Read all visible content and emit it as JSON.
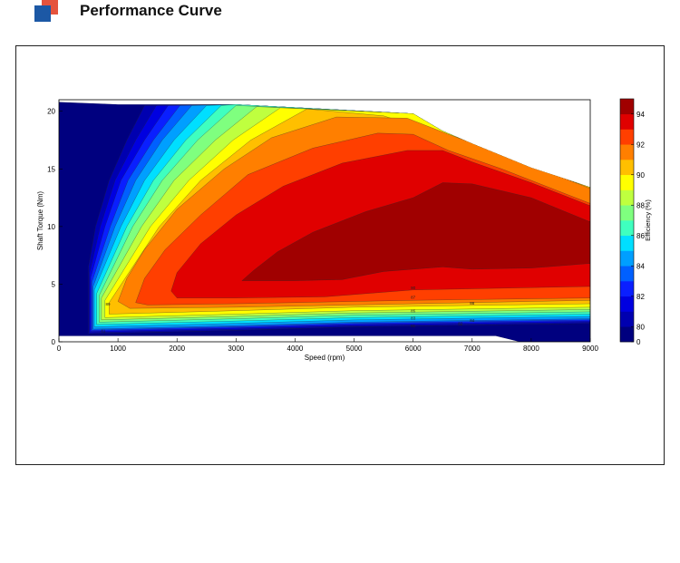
{
  "header": {
    "title": "Performance Curve"
  },
  "chart_data": {
    "type": "contour",
    "xlabel": "Speed  (rpm)",
    "ylabel": "Shaft Torque  (Nm)",
    "colorbar_label": "Efficiency (%)",
    "xlim": [
      0,
      9000
    ],
    "ylim": [
      0,
      21
    ],
    "x_ticks": [
      "0",
      "1000",
      "2000",
      "3000",
      "4000",
      "5000",
      "6000",
      "7000",
      "8000",
      "9000"
    ],
    "y_ticks": [
      "0",
      "5",
      "10",
      "15",
      "20"
    ],
    "colorbar_ticks": [
      "0",
      "80",
      "82",
      "84",
      "86",
      "88",
      "90",
      "92",
      "94"
    ],
    "levels": [
      0,
      80,
      81,
      82,
      83,
      84,
      85,
      86,
      87,
      88,
      89,
      90,
      91,
      92,
      93,
      94
    ],
    "colors": [
      "#00007f",
      "#0000b0",
      "#0000e0",
      "#0a1fff",
      "#0060ff",
      "#009fff",
      "#00dfff",
      "#3fffbf",
      "#7fff7f",
      "#bfff3f",
      "#ffff00",
      "#ffbf00",
      "#ff7f00",
      "#ff3f00",
      "#e00000",
      "#a00000"
    ],
    "envelope": [
      [
        0,
        20.8
      ],
      [
        1000,
        20.6
      ],
      [
        3000,
        20.6
      ],
      [
        6000,
        19.8
      ],
      [
        6500,
        18.3
      ],
      [
        7000,
        17.2
      ],
      [
        8000,
        15.1
      ],
      [
        8600,
        14.1
      ],
      [
        9000,
        13.4
      ],
      [
        9000,
        0
      ],
      [
        7800,
        0
      ],
      [
        7400,
        0.5
      ],
      [
        0,
        0.5
      ]
    ],
    "zones": [
      {
        "level": 0,
        "points": [
          [
            0,
            20.8
          ],
          [
            1000,
            20.6
          ],
          [
            3000,
            20.6
          ],
          [
            6000,
            19.8
          ],
          [
            6500,
            18.3
          ],
          [
            7000,
            17.2
          ],
          [
            8000,
            15.1
          ],
          [
            8600,
            14.1
          ],
          [
            9000,
            13.4
          ],
          [
            9000,
            0
          ],
          [
            7800,
            0
          ],
          [
            7400,
            0.5
          ],
          [
            0,
            0.5
          ]
        ]
      },
      {
        "level": 80,
        "points": [
          [
            500,
            6.5
          ],
          [
            620,
            10
          ],
          [
            850,
            14
          ],
          [
            1150,
            17.5
          ],
          [
            1450,
            20.5
          ],
          [
            3000,
            20.6
          ],
          [
            6000,
            19.8
          ],
          [
            6500,
            18.3
          ],
          [
            7000,
            17.2
          ],
          [
            8000,
            15.1
          ],
          [
            8600,
            14.1
          ],
          [
            9000,
            13.4
          ],
          [
            9000,
            1.6
          ],
          [
            5000,
            1.3
          ],
          [
            3000,
            1.0
          ],
          [
            500,
            0.7
          ]
        ]
      },
      {
        "level": 81,
        "points": [
          [
            520,
            6.0
          ],
          [
            700,
            10
          ],
          [
            950,
            14
          ],
          [
            1300,
            17.5
          ],
          [
            1650,
            20.5
          ],
          [
            3000,
            20.6
          ],
          [
            6000,
            19.8
          ],
          [
            6500,
            18.3
          ],
          [
            7000,
            17.2
          ],
          [
            8000,
            15.1
          ],
          [
            8600,
            14.1
          ],
          [
            9000,
            13.4
          ],
          [
            9000,
            1.7
          ],
          [
            5000,
            1.4
          ],
          [
            3000,
            1.1
          ],
          [
            520,
            0.8
          ]
        ]
      },
      {
        "level": 82,
        "points": [
          [
            540,
            5.6
          ],
          [
            780,
            10
          ],
          [
            1050,
            14
          ],
          [
            1450,
            17.5
          ],
          [
            1850,
            20.5
          ],
          [
            3000,
            20.6
          ],
          [
            6000,
            19.8
          ],
          [
            6500,
            18.3
          ],
          [
            7000,
            17.2
          ],
          [
            8000,
            15.1
          ],
          [
            8600,
            14.1
          ],
          [
            9000,
            13.4
          ],
          [
            9000,
            1.8
          ],
          [
            5000,
            1.5
          ],
          [
            3000,
            1.2
          ],
          [
            540,
            0.9
          ]
        ]
      },
      {
        "level": 83,
        "points": [
          [
            560,
            5.2
          ],
          [
            870,
            10
          ],
          [
            1170,
            14
          ],
          [
            1600,
            17.5
          ],
          [
            2050,
            20.5
          ],
          [
            3000,
            20.6
          ],
          [
            6000,
            19.8
          ],
          [
            6500,
            18.3
          ],
          [
            7000,
            17.2
          ],
          [
            8000,
            15.1
          ],
          [
            8600,
            14.1
          ],
          [
            9000,
            13.4
          ],
          [
            9000,
            1.9
          ],
          [
            5000,
            1.6
          ],
          [
            3000,
            1.3
          ],
          [
            560,
            1.0
          ]
        ]
      },
      {
        "level": 84,
        "points": [
          [
            580,
            4.8
          ],
          [
            950,
            10
          ],
          [
            1300,
            14
          ],
          [
            1750,
            17.5
          ],
          [
            2250,
            20.5
          ],
          [
            3000,
            20.6
          ],
          [
            6000,
            19.8
          ],
          [
            6500,
            18.3
          ],
          [
            7000,
            17.2
          ],
          [
            8000,
            15.1
          ],
          [
            8600,
            14.1
          ],
          [
            9000,
            13.4
          ],
          [
            9000,
            2.0
          ],
          [
            5000,
            1.7
          ],
          [
            3000,
            1.4
          ],
          [
            580,
            1.1
          ]
        ]
      },
      {
        "level": 85,
        "points": [
          [
            600,
            4.5
          ],
          [
            1050,
            10
          ],
          [
            1450,
            14
          ],
          [
            1950,
            17.5
          ],
          [
            2500,
            20.5
          ],
          [
            3000,
            20.6
          ],
          [
            6000,
            19.8
          ],
          [
            6500,
            18.3
          ],
          [
            7000,
            17.2
          ],
          [
            8000,
            15.1
          ],
          [
            8600,
            14.1
          ],
          [
            9000,
            13.4
          ],
          [
            9000,
            2.2
          ],
          [
            5000,
            1.9
          ],
          [
            3000,
            1.6
          ],
          [
            600,
            1.3
          ]
        ]
      },
      {
        "level": 86,
        "points": [
          [
            640,
            4.2
          ],
          [
            1150,
            10
          ],
          [
            1600,
            14
          ],
          [
            2150,
            17.5
          ],
          [
            2750,
            20.5
          ],
          [
            3000,
            20.6
          ],
          [
            6000,
            19.8
          ],
          [
            6500,
            18.3
          ],
          [
            7000,
            17.2
          ],
          [
            8000,
            15.1
          ],
          [
            8600,
            14.1
          ],
          [
            9000,
            13.4
          ],
          [
            9000,
            2.4
          ],
          [
            5000,
            2.1
          ],
          [
            3000,
            1.8
          ],
          [
            640,
            1.5
          ]
        ]
      },
      {
        "level": 87,
        "points": [
          [
            680,
            4.0
          ],
          [
            1250,
            10
          ],
          [
            1750,
            14
          ],
          [
            2350,
            17.5
          ],
          [
            3000,
            20.5
          ],
          [
            6000,
            19.8
          ],
          [
            6500,
            18.3
          ],
          [
            7000,
            17.2
          ],
          [
            8000,
            15.1
          ],
          [
            8600,
            14.1
          ],
          [
            9000,
            13.4
          ],
          [
            9000,
            2.6
          ],
          [
            5000,
            2.3
          ],
          [
            3000,
            2.0
          ],
          [
            680,
            1.7
          ]
        ]
      },
      {
        "level": 88,
        "points": [
          [
            720,
            3.8
          ],
          [
            1400,
            10
          ],
          [
            1950,
            14
          ],
          [
            2650,
            17.5
          ],
          [
            3350,
            20.4
          ],
          [
            6000,
            19.8
          ],
          [
            6500,
            18.3
          ],
          [
            7000,
            17.2
          ],
          [
            8000,
            15.1
          ],
          [
            8600,
            14.1
          ],
          [
            9000,
            13.4
          ],
          [
            9000,
            2.8
          ],
          [
            5000,
            2.5
          ],
          [
            3000,
            2.2
          ],
          [
            720,
            1.9
          ]
        ]
      },
      {
        "level": 89,
        "points": [
          [
            780,
            3.6
          ],
          [
            1550,
            10
          ],
          [
            2200,
            14
          ],
          [
            2950,
            17.5
          ],
          [
            3750,
            20.3
          ],
          [
            6000,
            19.8
          ],
          [
            6500,
            18.3
          ],
          [
            7000,
            17.2
          ],
          [
            8000,
            15.1
          ],
          [
            8600,
            14.1
          ],
          [
            9000,
            13.4
          ],
          [
            9000,
            3.0
          ],
          [
            5000,
            2.7
          ],
          [
            3000,
            2.4
          ],
          [
            780,
            2.1
          ]
        ]
      },
      {
        "level": 90,
        "points": [
          [
            850,
            3.4
          ],
          [
            1700,
            10
          ],
          [
            2400,
            14
          ],
          [
            3250,
            17.5
          ],
          [
            4200,
            20.2
          ],
          [
            5500,
            19.6
          ],
          [
            6300,
            18.3
          ],
          [
            7000,
            17.2
          ],
          [
            8000,
            15.1
          ],
          [
            8600,
            14.1
          ],
          [
            9000,
            13.4
          ],
          [
            9000,
            3.3
          ],
          [
            5000,
            3.0
          ],
          [
            3000,
            2.7
          ],
          [
            850,
            2.4
          ]
        ]
      },
      {
        "level": 91,
        "points": [
          [
            1000,
            3.5
          ],
          [
            1150,
            5.5
          ],
          [
            1450,
            8
          ],
          [
            2000,
            11.5
          ],
          [
            2800,
            15
          ],
          [
            3600,
            17.7
          ],
          [
            4700,
            19.5
          ],
          [
            5900,
            19.4
          ],
          [
            6600,
            18
          ],
          [
            7500,
            16.3
          ],
          [
            8500,
            14.3
          ],
          [
            9000,
            13.3
          ],
          [
            9000,
            3.6
          ],
          [
            6000,
            3.3
          ],
          [
            3000,
            3.0
          ],
          [
            1200,
            2.9
          ]
        ]
      },
      {
        "level": 92,
        "points": [
          [
            1300,
            3.4
          ],
          [
            1450,
            5.5
          ],
          [
            1800,
            8
          ],
          [
            2400,
            11
          ],
          [
            3200,
            14.5
          ],
          [
            4300,
            16.8
          ],
          [
            5400,
            18.1
          ],
          [
            6000,
            18
          ],
          [
            6600,
            16.6
          ],
          [
            7500,
            15
          ],
          [
            8500,
            13
          ],
          [
            9000,
            12
          ],
          [
            9000,
            3.8
          ],
          [
            6000,
            3.6
          ],
          [
            3000,
            3.3
          ],
          [
            1500,
            3.2
          ]
        ]
      },
      {
        "level": 93,
        "points": [
          [
            1900,
            4.4
          ],
          [
            2000,
            6
          ],
          [
            2400,
            8.5
          ],
          [
            3000,
            11
          ],
          [
            3800,
            13.5
          ],
          [
            4800,
            15.5
          ],
          [
            5900,
            16.6
          ],
          [
            6500,
            16.6
          ],
          [
            7000,
            15.6
          ],
          [
            8000,
            13.8
          ],
          [
            9000,
            11.8
          ],
          [
            9000,
            4.8
          ],
          [
            7000,
            4.6
          ],
          [
            6000,
            4.5
          ],
          [
            4500,
            3.9
          ],
          [
            3000,
            3.8
          ],
          [
            2000,
            3.8
          ]
        ]
      },
      {
        "level": 94,
        "points": [
          [
            3100,
            5.3
          ],
          [
            3300,
            6.2
          ],
          [
            3700,
            7.8
          ],
          [
            4300,
            9.5
          ],
          [
            5200,
            11.3
          ],
          [
            6000,
            12.5
          ],
          [
            6500,
            13.8
          ],
          [
            7000,
            13.7
          ],
          [
            8000,
            12.5
          ],
          [
            9000,
            10.4
          ],
          [
            9000,
            6.8
          ],
          [
            8000,
            6.4
          ],
          [
            7000,
            6.3
          ],
          [
            6500,
            6.5
          ],
          [
            5500,
            6.1
          ],
          [
            4800,
            5.4
          ],
          [
            4000,
            5.3
          ]
        ]
      }
    ],
    "contour_labels": [
      {
        "x": 830,
        "y": 3.3,
        "text": "89"
      },
      {
        "x": 750,
        "y": 1.0,
        "text": "81"
      },
      {
        "x": 6000,
        "y": 4.7,
        "text": "90"
      },
      {
        "x": 6000,
        "y": 3.9,
        "text": "87"
      },
      {
        "x": 6000,
        "y": 2.7,
        "text": "85"
      },
      {
        "x": 6000,
        "y": 2.1,
        "text": "83"
      },
      {
        "x": 6000,
        "y": 1.4,
        "text": "81"
      },
      {
        "x": 7000,
        "y": 3.4,
        "text": "86"
      },
      {
        "x": 7000,
        "y": 1.9,
        "text": "84"
      },
      {
        "x": 6800,
        "y": 1.6,
        "text": "82"
      }
    ]
  }
}
